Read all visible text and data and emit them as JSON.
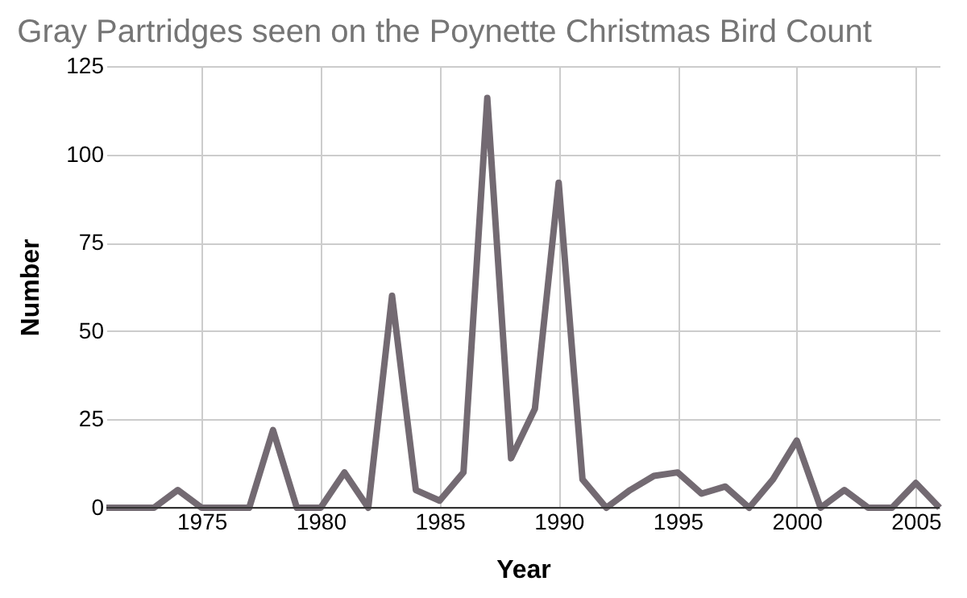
{
  "chart_data": {
    "type": "line",
    "title": "Gray Partridges seen on the Poynette Christmas Bird Count",
    "xlabel": "Year",
    "ylabel": "Number",
    "x": [
      1971,
      1972,
      1973,
      1974,
      1975,
      1976,
      1977,
      1978,
      1979,
      1980,
      1981,
      1982,
      1983,
      1984,
      1985,
      1986,
      1987,
      1988,
      1989,
      1990,
      1991,
      1992,
      1993,
      1994,
      1995,
      1996,
      1997,
      1998,
      1999,
      2000,
      2001,
      2002,
      2003,
      2004,
      2005,
      2006
    ],
    "series": [
      {
        "color": "#736a72",
        "values": [
          0,
          0,
          0,
          5,
          0,
          0,
          0,
          22,
          0,
          0,
          10,
          0,
          60,
          5,
          2,
          10,
          116,
          14,
          28,
          92,
          8,
          0,
          5,
          9,
          10,
          4,
          6,
          0,
          8,
          19,
          0,
          5,
          0,
          0,
          7,
          0
        ]
      }
    ],
    "xlim": [
      1971,
      2006
    ],
    "xticks": [
      1975,
      1980,
      1985,
      1990,
      1995,
      2000,
      2005
    ],
    "ylim": [
      0,
      125
    ],
    "yticks": [
      0,
      25,
      50,
      75,
      100,
      125
    ],
    "grid": true,
    "marker": "none",
    "line_style": "solid"
  }
}
